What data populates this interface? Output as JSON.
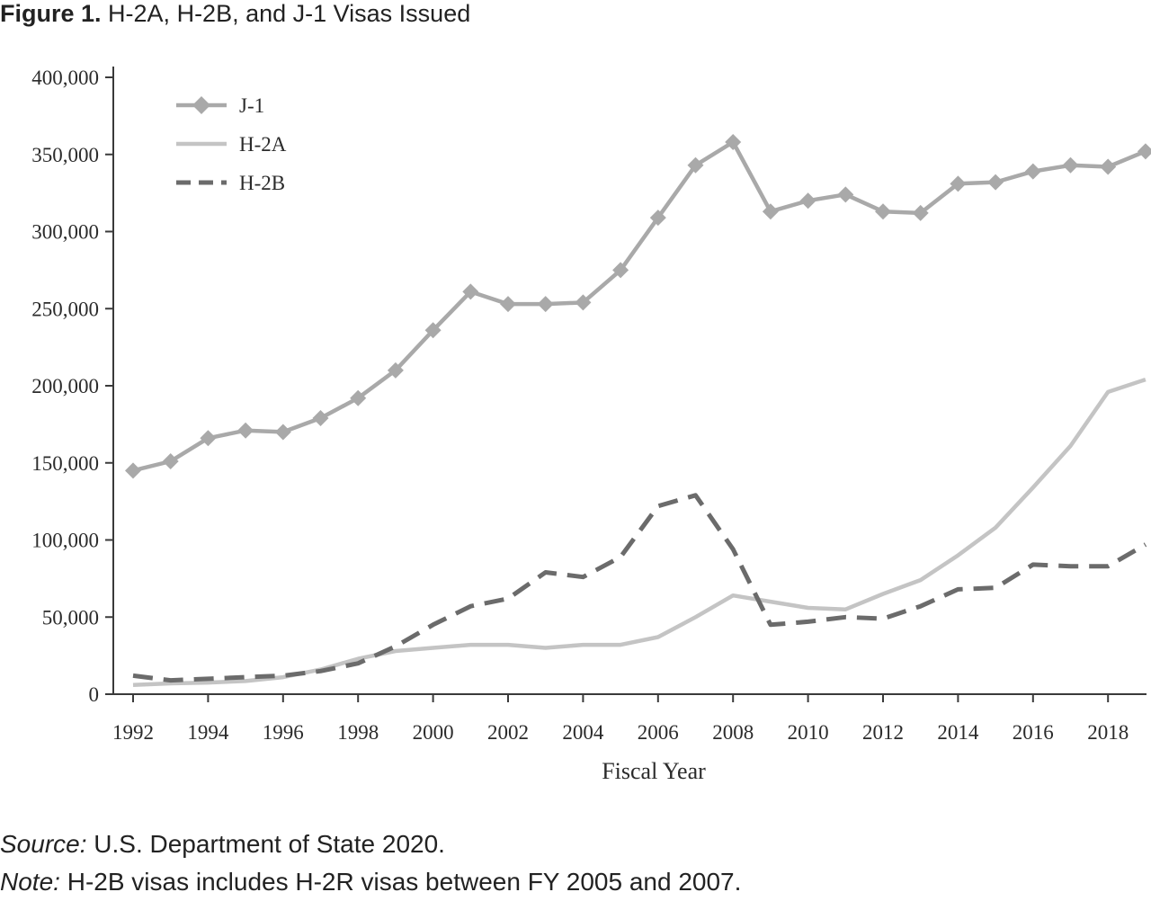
{
  "figure": {
    "label": "Figure 1.",
    "title": "H-2A, H-2B, and J-1 Visas Issued"
  },
  "chart_data": {
    "type": "line",
    "title": "H-2A, H-2B, and J-1 Visas Issued",
    "xlabel": "Fiscal Year",
    "ylabel": "",
    "ylim": [
      0,
      400000
    ],
    "xlim": [
      1992,
      2019
    ],
    "x_ticks": [
      "1992",
      "1994",
      "1996",
      "1998",
      "2000",
      "2002",
      "2004",
      "2006",
      "2008",
      "2010",
      "2012",
      "2014",
      "2016",
      "2018"
    ],
    "y_ticks": [
      "0",
      "50,000",
      "100,000",
      "150,000",
      "200,000",
      "250,000",
      "300,000",
      "350,000",
      "400,000"
    ],
    "y_tick_values": [
      0,
      50000,
      100000,
      150000,
      200000,
      250000,
      300000,
      350000,
      400000
    ],
    "grid": false,
    "legend_position": "top-left",
    "x": [
      1992,
      1993,
      1994,
      1995,
      1996,
      1997,
      1998,
      1999,
      2000,
      2001,
      2002,
      2003,
      2004,
      2005,
      2006,
      2007,
      2008,
      2009,
      2010,
      2011,
      2012,
      2013,
      2014,
      2015,
      2016,
      2017,
      2018,
      2019
    ],
    "series": [
      {
        "name": "J-1",
        "style": "solid-diamond",
        "color": "#a9a9a9",
        "values": [
          145000,
          151000,
          166000,
          171000,
          170000,
          179000,
          192000,
          210000,
          236000,
          261000,
          253000,
          253000,
          254000,
          275000,
          309000,
          343000,
          358000,
          313000,
          320000,
          324000,
          313000,
          312000,
          331000,
          332000,
          339000,
          343000,
          342000,
          352000
        ]
      },
      {
        "name": "H-2A",
        "style": "solid",
        "color": "#c4c4c4",
        "values": [
          6000,
          7000,
          7500,
          8500,
          11000,
          16000,
          23000,
          28000,
          30000,
          32000,
          32000,
          30000,
          32000,
          32000,
          37000,
          50000,
          64000,
          60000,
          56000,
          55000,
          65000,
          74000,
          90000,
          108000,
          134000,
          161000,
          196000,
          204000
        ]
      },
      {
        "name": "H-2B",
        "style": "dashed",
        "color": "#6b6b6b",
        "values": [
          12000,
          9000,
          10000,
          11000,
          12000,
          15000,
          20000,
          31000,
          45000,
          57000,
          62000,
          79000,
          76000,
          89000,
          122000,
          129000,
          94000,
          45000,
          47000,
          50000,
          49000,
          57000,
          68000,
          69000,
          84000,
          83000,
          83000,
          97000
        ]
      }
    ]
  },
  "notes": {
    "source_label": "Source:",
    "source_text": " U.S. Department of State 2020.",
    "note_label": "Note:",
    "note_text": " H-2B visas includes H-2R visas between FY 2005 and 2007."
  }
}
